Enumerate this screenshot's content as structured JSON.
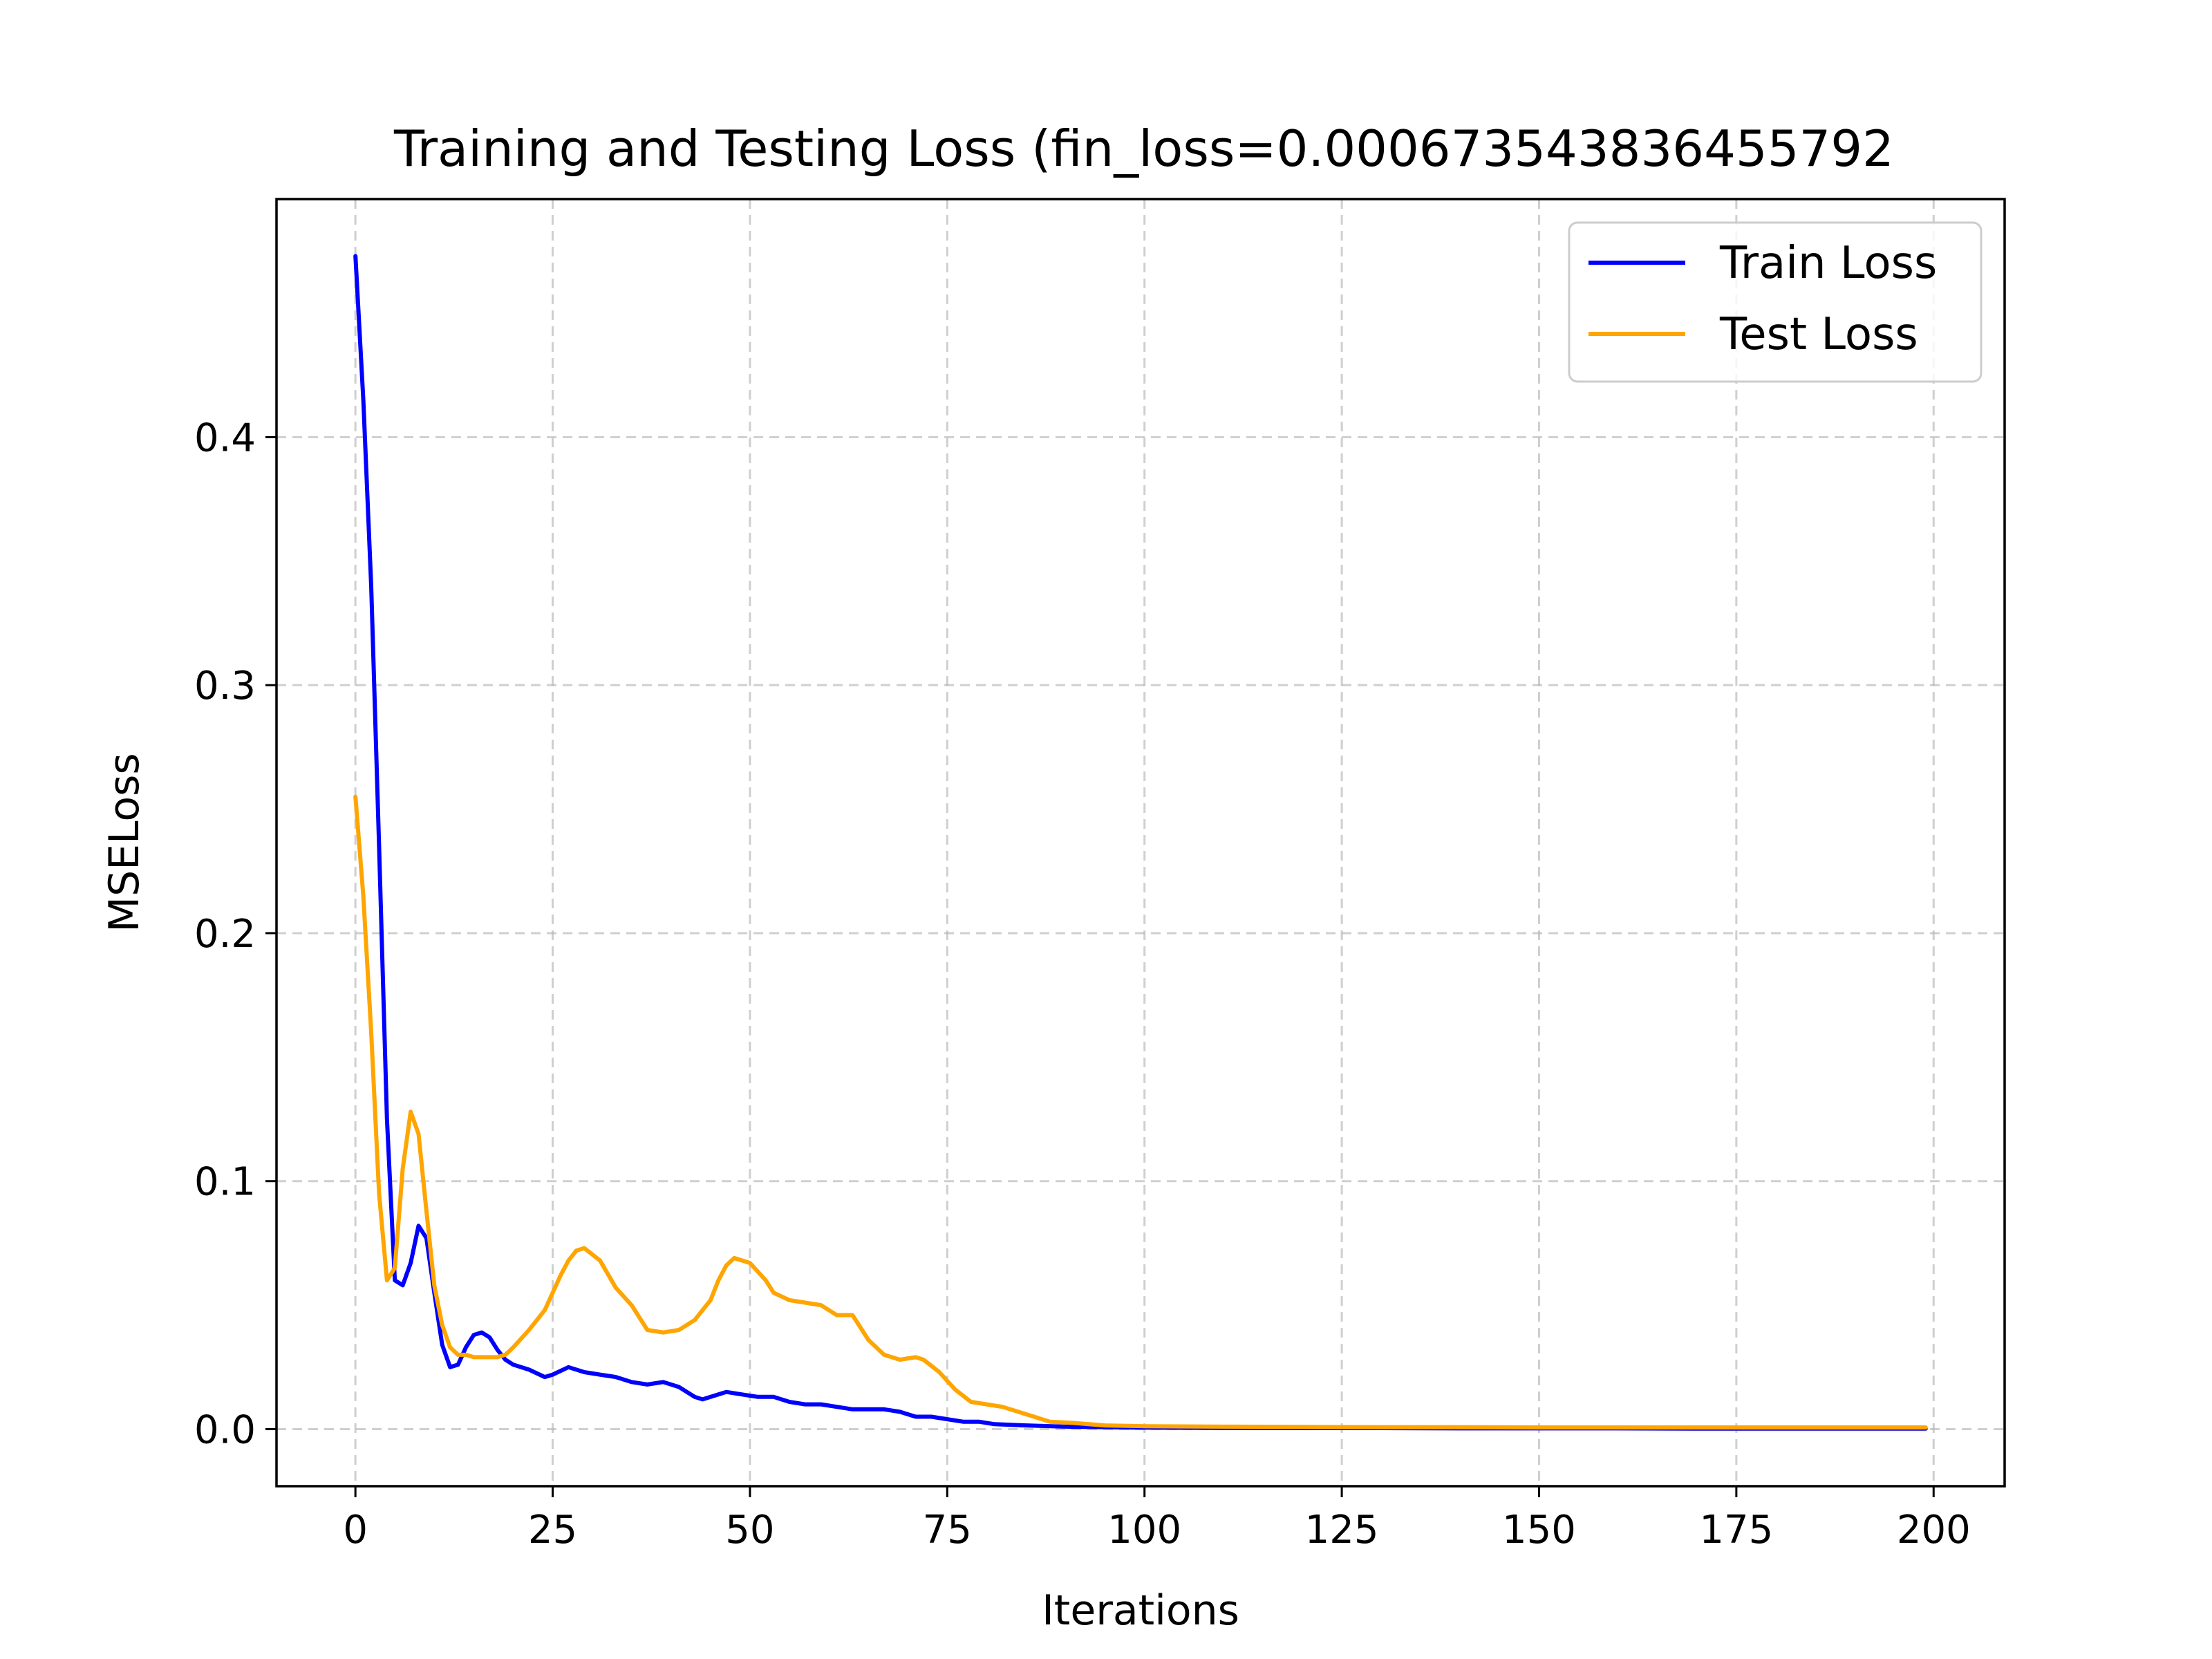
{
  "chart_data": {
    "type": "line",
    "title": "Training and Testing Loss  (fin_loss=0.000673543836455792",
    "xlabel": "Iterations",
    "ylabel": "MSELoss",
    "xlim": [
      -10,
      209
    ],
    "ylim": [
      -0.023,
      0.496
    ],
    "xticks": [
      0,
      25,
      50,
      75,
      100,
      125,
      150,
      175,
      200
    ],
    "xtick_labels": [
      "0",
      "25",
      "50",
      "75",
      "100",
      "125",
      "150",
      "175",
      "200"
    ],
    "yticks": [
      0.0,
      0.1,
      0.2,
      0.3,
      0.4
    ],
    "ytick_labels": [
      "0.0",
      "0.1",
      "0.2",
      "0.3",
      "0.4"
    ],
    "grid": true,
    "legend_position": "top-right",
    "series": [
      {
        "name": "Train Loss",
        "color": "#0000ff",
        "x": [
          0,
          1,
          2,
          3,
          4,
          5,
          6,
          7,
          8,
          9,
          10,
          11,
          12,
          13,
          14,
          15,
          16,
          17,
          18,
          19,
          20,
          22,
          24,
          25,
          27,
          29,
          31,
          33,
          35,
          37,
          39,
          41,
          43,
          44,
          46,
          47,
          49,
          51,
          53,
          55,
          57,
          59,
          61,
          63,
          65,
          67,
          69,
          71,
          73,
          75,
          77,
          79,
          81,
          85,
          90,
          95,
          100,
          110,
          120,
          130,
          140,
          150,
          160,
          170,
          180,
          190,
          199
        ],
        "y": [
          0.473,
          0.415,
          0.34,
          0.235,
          0.125,
          0.06,
          0.058,
          0.067,
          0.082,
          0.077,
          0.055,
          0.034,
          0.025,
          0.026,
          0.033,
          0.038,
          0.039,
          0.037,
          0.032,
          0.028,
          0.026,
          0.024,
          0.021,
          0.022,
          0.025,
          0.023,
          0.022,
          0.021,
          0.019,
          0.018,
          0.019,
          0.017,
          0.013,
          0.012,
          0.014,
          0.015,
          0.014,
          0.013,
          0.013,
          0.011,
          0.01,
          0.01,
          0.009,
          0.008,
          0.008,
          0.008,
          0.007,
          0.005,
          0.005,
          0.004,
          0.003,
          0.003,
          0.002,
          0.0015,
          0.001,
          0.0008,
          0.0006,
          0.0005,
          0.0004,
          0.0004,
          0.0003,
          0.0003,
          0.0003,
          0.0002,
          0.0002,
          0.0002,
          0.0002
        ]
      },
      {
        "name": "Test Loss",
        "color": "#ffa500",
        "x": [
          0,
          1,
          2,
          3,
          4,
          5,
          6,
          7,
          8,
          9,
          10,
          11,
          12,
          13,
          14,
          15,
          16,
          17,
          18,
          19,
          20,
          22,
          24,
          26,
          27,
          28,
          29,
          31,
          33,
          35,
          37,
          39,
          41,
          43,
          45,
          46,
          47,
          48,
          50,
          52,
          53,
          55,
          57,
          59,
          61,
          63,
          65,
          67,
          69,
          71,
          72,
          74,
          76,
          78,
          80,
          82,
          84,
          86,
          88,
          91,
          95,
          100,
          110,
          120,
          130,
          140,
          150,
          160,
          170,
          180,
          190,
          199
        ],
        "y": [
          0.255,
          0.215,
          0.16,
          0.095,
          0.06,
          0.065,
          0.105,
          0.128,
          0.119,
          0.088,
          0.058,
          0.042,
          0.033,
          0.03,
          0.03,
          0.029,
          0.029,
          0.029,
          0.029,
          0.03,
          0.033,
          0.04,
          0.048,
          0.062,
          0.068,
          0.072,
          0.073,
          0.068,
          0.057,
          0.05,
          0.04,
          0.039,
          0.04,
          0.044,
          0.052,
          0.06,
          0.066,
          0.069,
          0.067,
          0.06,
          0.055,
          0.052,
          0.051,
          0.05,
          0.046,
          0.046,
          0.036,
          0.03,
          0.028,
          0.029,
          0.028,
          0.023,
          0.016,
          0.011,
          0.01,
          0.009,
          0.007,
          0.005,
          0.003,
          0.0025,
          0.0015,
          0.0012,
          0.001,
          0.0009,
          0.0008,
          0.0008,
          0.0007,
          0.0007,
          0.0007,
          0.0007,
          0.0007,
          0.0007
        ]
      }
    ]
  }
}
